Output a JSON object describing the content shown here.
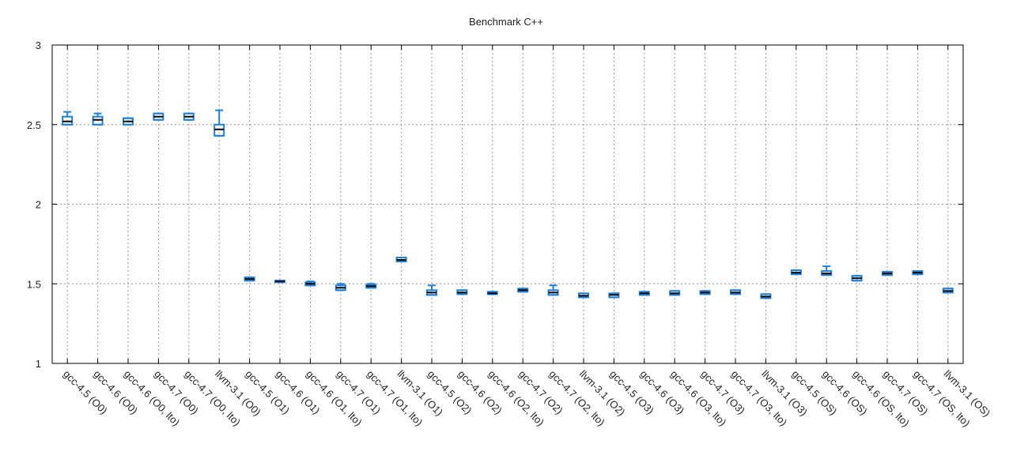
{
  "chart_data": {
    "type": "box",
    "title": "Benchmark C++",
    "categories": [
      "gcc-4.5 (O0)",
      "gcc-4.6 (O0)",
      "gcc-4.6 (O0, lto)",
      "gcc-4.7 (O0)",
      "gcc-4.7 (O0, lto)",
      "llvm-3.1 (O0)",
      "gcc-4.5 (O1)",
      "gcc-4.6 (O1)",
      "gcc-4.6 (O1, lto)",
      "gcc-4.7 (O1)",
      "gcc-4.7 (O1, lto)",
      "llvm-3.1 (O1)",
      "gcc-4.5 (O2)",
      "gcc-4.6 (O2)",
      "gcc-4.6 (O2, lto)",
      "gcc-4.7 (O2)",
      "gcc-4.7 (O2, lto)",
      "llvm-3.1 (O2)",
      "gcc-4.5 (O3)",
      "gcc-4.6 (O3)",
      "gcc-4.6 (O3, lto)",
      "gcc-4.7 (O3)",
      "gcc-4.7 (O3, lto)",
      "llvm-3.1 (O3)",
      "gcc-4.5 (OS)",
      "gcc-4.6 (OS)",
      "gcc-4.6 (OS, lto)",
      "gcc-4.7 (OS)",
      "gcc-4.7 (OS, lto)",
      "llvm-3.1 (OS)"
    ],
    "min": [
      2.5,
      2.5,
      2.5,
      2.53,
      2.53,
      2.43,
      1.52,
      1.51,
      1.49,
      1.46,
      1.475,
      1.64,
      1.43,
      1.435,
      1.435,
      1.45,
      1.43,
      1.415,
      1.415,
      1.43,
      1.43,
      1.435,
      1.435,
      1.41,
      1.56,
      1.555,
      1.52,
      1.555,
      1.56,
      1.445
    ],
    "q1": [
      2.5,
      2.5,
      2.5,
      2.53,
      2.53,
      2.43,
      1.52,
      1.51,
      1.49,
      1.46,
      1.475,
      1.64,
      1.43,
      1.435,
      1.435,
      1.45,
      1.43,
      1.415,
      1.415,
      1.43,
      1.43,
      1.435,
      1.435,
      1.41,
      1.56,
      1.555,
      1.52,
      1.555,
      1.56,
      1.445
    ],
    "median": [
      2.52,
      2.53,
      2.52,
      2.55,
      2.55,
      2.47,
      1.53,
      1.515,
      1.5,
      1.475,
      1.485,
      1.65,
      1.445,
      1.445,
      1.44,
      1.46,
      1.445,
      1.425,
      1.43,
      1.44,
      1.44,
      1.445,
      1.445,
      1.42,
      1.57,
      1.565,
      1.535,
      1.565,
      1.57,
      1.455
    ],
    "q3": [
      2.55,
      2.55,
      2.54,
      2.57,
      2.57,
      2.5,
      1.54,
      1.52,
      1.51,
      1.49,
      1.495,
      1.665,
      1.46,
      1.46,
      1.45,
      1.47,
      1.46,
      1.44,
      1.44,
      1.45,
      1.455,
      1.455,
      1.46,
      1.435,
      1.585,
      1.58,
      1.55,
      1.575,
      1.58,
      1.47
    ],
    "max": [
      2.58,
      2.57,
      2.54,
      2.57,
      2.57,
      2.59,
      1.54,
      1.52,
      1.515,
      1.5,
      1.5,
      1.665,
      1.49,
      1.46,
      1.45,
      1.47,
      1.49,
      1.44,
      1.44,
      1.45,
      1.455,
      1.455,
      1.46,
      1.435,
      1.585,
      1.61,
      1.55,
      1.575,
      1.58,
      1.47
    ],
    "color": "#1e7fd8",
    "median_color": "#000000",
    "ylim": [
      1,
      3
    ],
    "yticks": [
      1,
      1.5,
      2,
      2.5,
      3
    ],
    "grid": true
  }
}
